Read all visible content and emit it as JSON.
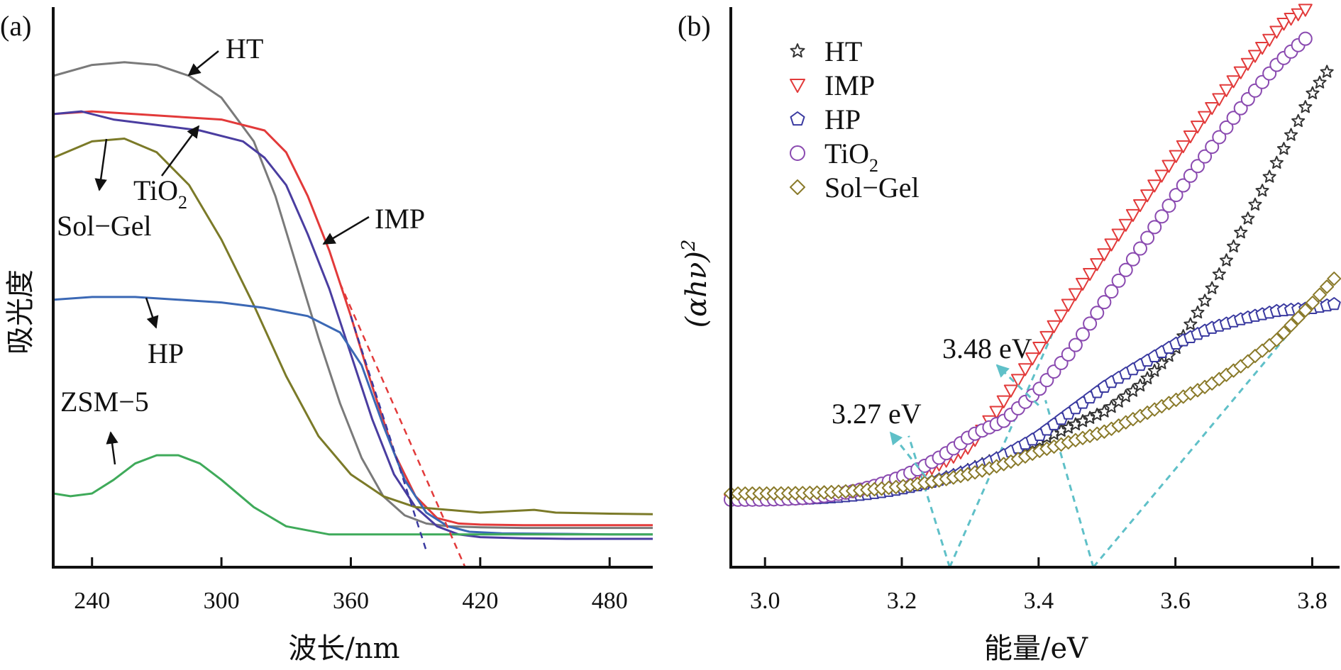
{
  "chart_data": [
    {
      "panel_label": "(a)",
      "type": "line",
      "xlabel": "波长/nm",
      "ylabel": "吸光度",
      "xlim": [
        222,
        500
      ],
      "ylim": [
        0,
        1
      ],
      "xticks": [
        240,
        300,
        360,
        420,
        480
      ],
      "y_ticks_shown": false,
      "series": [
        {
          "name": "HT",
          "color": "#7a7a7a",
          "x": [
            222,
            240,
            255,
            270,
            285,
            300,
            315,
            325,
            335,
            345,
            355,
            365,
            375,
            385,
            395,
            405,
            420,
            440,
            460,
            480,
            500
          ],
          "y": [
            0.9,
            0.92,
            0.925,
            0.92,
            0.9,
            0.86,
            0.78,
            0.68,
            0.55,
            0.42,
            0.3,
            0.2,
            0.13,
            0.095,
            0.08,
            0.075,
            0.073,
            0.072,
            0.072,
            0.072,
            0.072
          ]
        },
        {
          "name": "IMP",
          "color": "#e23a3a",
          "x": [
            222,
            240,
            260,
            280,
            300,
            320,
            330,
            340,
            350,
            360,
            370,
            380,
            390,
            400,
            410,
            420,
            440,
            460,
            480,
            500
          ],
          "y": [
            0.83,
            0.835,
            0.83,
            0.825,
            0.82,
            0.8,
            0.76,
            0.68,
            0.58,
            0.46,
            0.33,
            0.21,
            0.13,
            0.09,
            0.08,
            0.078,
            0.077,
            0.077,
            0.077,
            0.077
          ]
        },
        {
          "name": "TiO2",
          "color": "#4a3da0",
          "x": [
            222,
            235,
            250,
            270,
            290,
            310,
            320,
            330,
            340,
            350,
            360,
            370,
            380,
            390,
            400,
            410,
            420,
            440,
            460,
            480,
            500
          ],
          "y": [
            0.83,
            0.835,
            0.82,
            0.81,
            0.8,
            0.78,
            0.75,
            0.7,
            0.61,
            0.51,
            0.39,
            0.27,
            0.17,
            0.11,
            0.075,
            0.06,
            0.055,
            0.053,
            0.052,
            0.052,
            0.052
          ]
        },
        {
          "name": "Sol−Gel",
          "color": "#7b7a28",
          "x": [
            222,
            240,
            255,
            270,
            285,
            300,
            315,
            330,
            345,
            360,
            375,
            390,
            405,
            420,
            445,
            455,
            480,
            500
          ],
          "y": [
            0.75,
            0.78,
            0.785,
            0.76,
            0.7,
            0.6,
            0.48,
            0.35,
            0.24,
            0.17,
            0.13,
            0.11,
            0.105,
            0.1,
            0.105,
            0.1,
            0.098,
            0.097
          ]
        },
        {
          "name": "HP",
          "color": "#3b68b5",
          "x": [
            222,
            240,
            260,
            280,
            300,
            320,
            340,
            355,
            365,
            375,
            385,
            395,
            405,
            415,
            430,
            460,
            480,
            500
          ],
          "y": [
            0.49,
            0.495,
            0.495,
            0.49,
            0.485,
            0.475,
            0.46,
            0.43,
            0.37,
            0.26,
            0.16,
            0.1,
            0.075,
            0.065,
            0.062,
            0.061,
            0.06,
            0.06
          ]
        },
        {
          "name": "ZSM−5",
          "color": "#3faa5a",
          "x": [
            222,
            230,
            240,
            250,
            260,
            270,
            280,
            290,
            300,
            315,
            330,
            350,
            380,
            420,
            500
          ],
          "y": [
            0.135,
            0.13,
            0.135,
            0.16,
            0.19,
            0.205,
            0.205,
            0.19,
            0.16,
            0.11,
            0.075,
            0.06,
            0.06,
            0.06,
            0.06
          ]
        }
      ],
      "tangent_lines": [
        {
          "color": "#3a3aa0",
          "x": [
            360,
            395
          ],
          "y": [
            0.46,
            0.03
          ]
        },
        {
          "color": "#e23a3a",
          "x": [
            355,
            413
          ],
          "y": [
            0.52,
            0.0
          ]
        }
      ],
      "annotations": [
        {
          "text": "HT",
          "series": "HT"
        },
        {
          "text": "IMP",
          "series": "IMP"
        },
        {
          "text": "TiO",
          "sub": "2",
          "series": "TiO2"
        },
        {
          "text": "Sol−Gel",
          "series": "Sol−Gel"
        },
        {
          "text": "HP",
          "series": "HP"
        },
        {
          "text": "ZSM−5",
          "series": "ZSM−5"
        }
      ]
    },
    {
      "panel_label": "(b)",
      "type": "scatter",
      "xlabel": "能量/eV",
      "ylabel": "(αhν)",
      "ylabel_sup": "2",
      "xlim": [
        2.95,
        3.84
      ],
      "ylim": [
        0,
        1
      ],
      "xticks": [
        3.0,
        3.2,
        3.4,
        3.6,
        3.8
      ],
      "y_ticks_shown": false,
      "legend_position": "top-left",
      "series": [
        {
          "name": "HT",
          "sub": "",
          "marker": "star",
          "color": "#333333",
          "x": [
            3.3,
            3.4,
            3.5,
            3.55,
            3.6,
            3.65,
            3.7,
            3.75,
            3.8,
            3.83
          ],
          "y": [
            0.095,
            0.15,
            0.21,
            0.26,
            0.33,
            0.44,
            0.57,
            0.7,
            0.83,
            0.89
          ]
        },
        {
          "name": "IMP",
          "sub": "",
          "marker": "triangle-down",
          "color": "#e23a3a",
          "x": [
            3.3,
            3.34,
            3.38,
            3.42,
            3.46,
            3.52,
            3.58,
            3.64,
            3.7,
            3.76,
            3.82
          ],
          "y": [
            0.14,
            0.21,
            0.29,
            0.37,
            0.45,
            0.56,
            0.67,
            0.78,
            0.88,
            0.97,
            1.02
          ]
        },
        {
          "name": "HP",
          "sub": "",
          "marker": "pentagon",
          "color": "#3a3aa0",
          "x": [
            3.4,
            3.45,
            3.5,
            3.55,
            3.6,
            3.65,
            3.7,
            3.75,
            3.8,
            3.84
          ],
          "y": [
            0.16,
            0.21,
            0.26,
            0.3,
            0.34,
            0.37,
            0.39,
            0.405,
            0.41,
            0.42
          ]
        },
        {
          "name": "TiO",
          "sub": "2",
          "marker": "circle",
          "color": "#8a4ab0",
          "x": [
            3.3,
            3.35,
            3.4,
            3.45,
            3.5,
            3.55,
            3.6,
            3.65,
            3.7,
            3.75,
            3.8
          ],
          "y": [
            0.16,
            0.19,
            0.25,
            0.33,
            0.43,
            0.53,
            0.63,
            0.72,
            0.81,
            0.89,
            0.95
          ]
        },
        {
          "name": "Sol−Gel",
          "sub": "",
          "marker": "diamond",
          "color": "#8a7a2a",
          "x": [
            3.4,
            3.45,
            3.5,
            3.55,
            3.6,
            3.65,
            3.7,
            3.75,
            3.8,
            3.84
          ],
          "y": [
            0.13,
            0.15,
            0.17,
            0.2,
            0.23,
            0.26,
            0.3,
            0.35,
            0.42,
            0.48
          ]
        }
      ],
      "tangent_lines": [
        {
          "color": "#3a3aa0",
          "x": [
            3.27,
            3.21
          ],
          "y": [
            0.0,
            0.16
          ]
        },
        {
          "color": "#e23a3a",
          "x": [
            3.27,
            3.42
          ],
          "y": [
            0.0,
            0.36
          ]
        },
        {
          "color": "#3a3aa0",
          "x": [
            3.48,
            3.41
          ],
          "y": [
            0.0,
            0.23
          ]
        },
        {
          "color": "#8a7a2a",
          "x": [
            3.48,
            3.84
          ],
          "y": [
            0.0,
            0.48
          ]
        }
      ],
      "annotations": [
        {
          "text": "3.48 eV",
          "x": 3.48
        },
        {
          "text": "3.27 eV",
          "x": 3.27
        }
      ]
    }
  ]
}
